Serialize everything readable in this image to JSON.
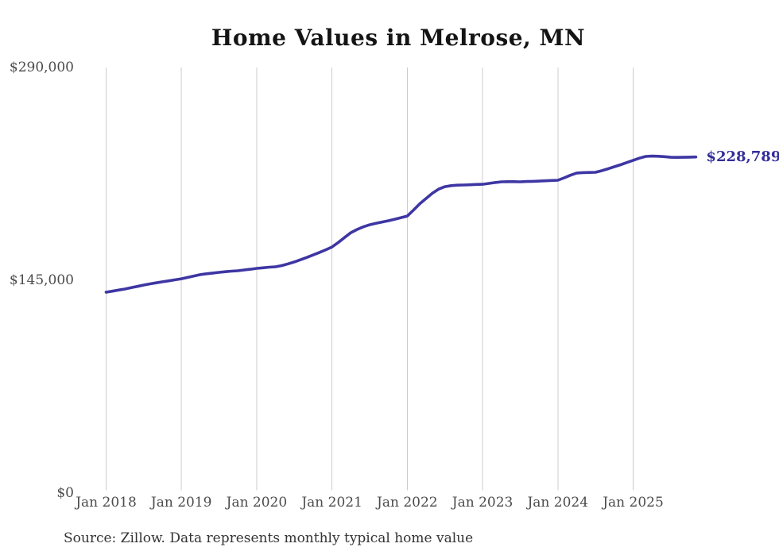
{
  "chart": {
    "colors": {
      "line": "#3e36a3",
      "end_label": "#332d9a",
      "gridline": "#cccccc",
      "axis_text": "#4b4b4b",
      "title_text": "#141414",
      "source_text": "#333333",
      "background": "#ffffff"
    }
  },
  "chart_data": {
    "type": "line",
    "title": "Home Values in Melrose, MN",
    "source": "Source: Zillow. Data represents monthly typical home value",
    "x_tick_labels": [
      "Jan 2018",
      "Jan 2019",
      "Jan 2020",
      "Jan 2021",
      "Jan 2022",
      "Jan 2023",
      "Jan 2024",
      "Jan 2025"
    ],
    "y_tick_labels": [
      "$290,000",
      "$145,000",
      "$0"
    ],
    "ylim": [
      0,
      290000
    ],
    "grid": "vertical",
    "legend": "none",
    "frequency": "monthly",
    "x_start": "2018-01",
    "x_end": "2025-11",
    "end_point_label": "$228,789",
    "end_value": 228789,
    "series": [
      {
        "name": "Typical home value (USD)",
        "values": [
          136300,
          137000,
          137800,
          138500,
          139400,
          140300,
          141200,
          142000,
          142700,
          143400,
          144100,
          144800,
          145500,
          146400,
          147400,
          148300,
          148900,
          149400,
          149900,
          150300,
          150700,
          151000,
          151500,
          152000,
          152600,
          153000,
          153400,
          153700,
          154500,
          155700,
          157000,
          158500,
          160100,
          161800,
          163500,
          165300,
          167200,
          170300,
          173700,
          177000,
          179200,
          181000,
          182400,
          183400,
          184300,
          185200,
          186200,
          187300,
          188400,
          192500,
          196800,
          200400,
          204000,
          206800,
          208500,
          209200,
          209500,
          209600,
          209800,
          210000,
          210100,
          210700,
          211300,
          211800,
          211900,
          211900,
          211800,
          212000,
          212100,
          212300,
          212500,
          212700,
          212900,
          214500,
          216300,
          217800,
          218100,
          218200,
          218300,
          219400,
          220700,
          222100,
          223500,
          225000,
          226500,
          228000,
          229200,
          229400,
          229300,
          229000,
          228600,
          228500,
          228600,
          228700,
          228789
        ]
      }
    ]
  }
}
